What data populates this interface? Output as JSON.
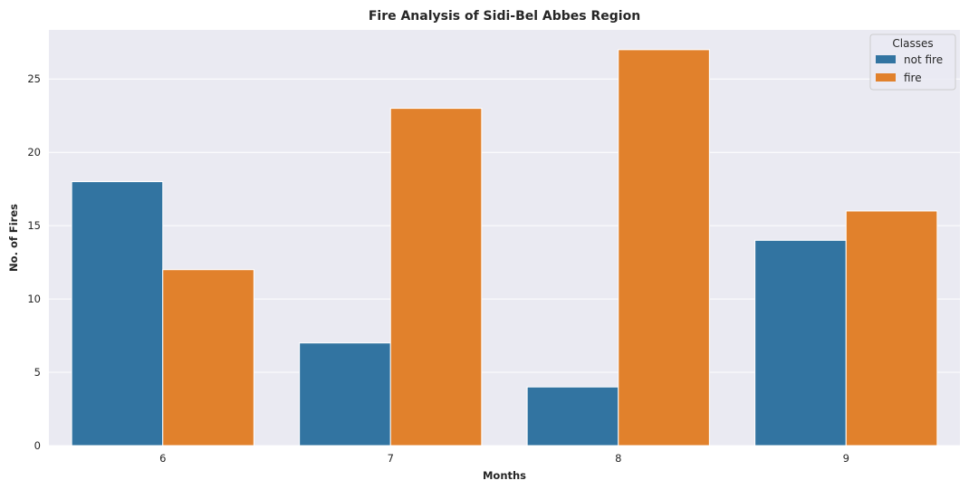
{
  "chart_data": {
    "type": "bar",
    "title": "Fire Analysis of Sidi-Bel Abbes Region",
    "xlabel": "Months",
    "ylabel": "No. of Fires",
    "categories": [
      "6",
      "7",
      "8",
      "9"
    ],
    "series": [
      {
        "name": "not fire",
        "color": "#3274a1",
        "values": [
          18,
          7,
          4,
          14
        ]
      },
      {
        "name": "fire",
        "color": "#e1812c",
        "values": [
          12,
          23,
          27,
          16
        ]
      }
    ],
    "ylim": [
      0,
      28.35
    ],
    "yticks": [
      0,
      5,
      10,
      15,
      20,
      25
    ],
    "grid": true,
    "legend": {
      "title": "Classes",
      "placement": "top-right"
    }
  }
}
